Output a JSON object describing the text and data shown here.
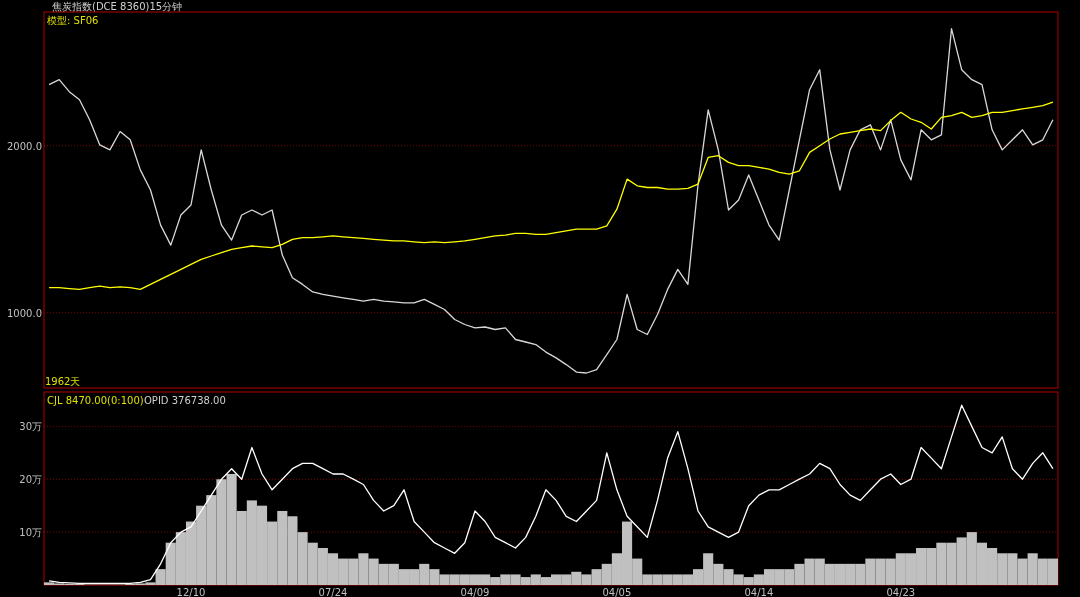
{
  "chart_data": [
    {
      "type": "line",
      "title": "焦炭指数(DCE 8360)15分钟",
      "annotations": [
        "模型: SF06",
        "1962天"
      ],
      "series": [
        {
          "color": "#d8d8d8",
          "values": [
            2365,
            2395,
            2323,
            2275,
            2155,
            2005,
            1975,
            2085,
            2035,
            1855,
            1735,
            1525,
            1405,
            1585,
            1645,
            1975,
            1735,
            1525,
            1435,
            1585,
            1615,
            1585,
            1615,
            1345,
            1210,
            1170,
            1125,
            1110,
            1100,
            1090,
            1080,
            1070,
            1080,
            1070,
            1065,
            1060,
            1060,
            1080,
            1050,
            1020,
            960,
            930,
            910,
            915,
            900,
            910,
            840,
            825,
            810,
            765,
            730,
            690,
            645,
            640,
            660,
            750,
            840,
            1110,
            900,
            870,
            990,
            1140,
            1260,
            1170,
            1765,
            2215,
            1975,
            1615,
            1675,
            1825,
            1675,
            1525,
            1435,
            1735,
            2035,
            2335,
            2455,
            1975,
            1735,
            1975,
            2095,
            2125,
            1975,
            2155,
            1915,
            1795,
            2095,
            2035,
            2065,
            2700,
            2455,
            2395,
            2365,
            2095,
            1975,
            2035,
            2095,
            2005,
            2035,
            2155
          ]
        },
        {
          "color": "#ffff00",
          "values": [
            1150,
            1150,
            1145,
            1140,
            1150,
            1160,
            1150,
            1155,
            1150,
            1140,
            1170,
            1200,
            1230,
            1260,
            1290,
            1320,
            1340,
            1360,
            1380,
            1390,
            1400,
            1395,
            1390,
            1410,
            1440,
            1450,
            1450,
            1455,
            1460,
            1455,
            1450,
            1445,
            1440,
            1435,
            1430,
            1430,
            1425,
            1420,
            1425,
            1420,
            1425,
            1430,
            1440,
            1450,
            1460,
            1465,
            1475,
            1475,
            1470,
            1470,
            1480,
            1490,
            1500,
            1500,
            1500,
            1520,
            1620,
            1800,
            1760,
            1750,
            1750,
            1740,
            1740,
            1745,
            1770,
            1930,
            1940,
            1900,
            1880,
            1880,
            1870,
            1860,
            1840,
            1830,
            1850,
            1960,
            2000,
            2040,
            2070,
            2080,
            2090,
            2100,
            2090,
            2150,
            2200,
            2160,
            2140,
            2100,
            2170,
            2180,
            2200,
            2170,
            2180,
            2200,
            2200,
            2210,
            2220,
            2230,
            2240,
            2260
          ]
        }
      ],
      "ylim": [
        550,
        2800
      ],
      "yticks": [
        {
          "value": 1000,
          "label": "1000.0"
        },
        {
          "value": 2000,
          "label": "2000.0"
        }
      ],
      "grid": "y",
      "tick_labels": "y"
    },
    {
      "type": "bar",
      "annotations": [
        "CJL 8470.00(0:100)",
        "OPID 376738.00"
      ],
      "categories": [
        null,
        null,
        null,
        null,
        null,
        null,
        null,
        null,
        null,
        null,
        null,
        null,
        null,
        null,
        "12/10",
        null,
        null,
        null,
        null,
        null,
        null,
        null,
        null,
        null,
        null,
        null,
        null,
        null,
        "07/24",
        null,
        null,
        null,
        null,
        null,
        null,
        null,
        null,
        null,
        null,
        null,
        null,
        null,
        "04/09",
        null,
        null,
        null,
        null,
        null,
        null,
        null,
        null,
        null,
        null,
        null,
        null,
        null,
        "04/05",
        null,
        null,
        null,
        null,
        null,
        null,
        null,
        null,
        null,
        null,
        null,
        null,
        null,
        "04/14",
        null,
        null,
        null,
        null,
        null,
        null,
        null,
        null,
        null,
        null,
        null,
        null,
        null,
        "04/23",
        null,
        null,
        null,
        null,
        null,
        null,
        null,
        null,
        null,
        null,
        null,
        null,
        null,
        null,
        null
      ],
      "series": [
        {
          "type": "bar",
          "color": "#c0c0c0",
          "values": [
            0.5,
            0.3,
            0.2,
            0.2,
            0.1,
            0.1,
            0.1,
            0.1,
            0.2,
            0.3,
            0.5,
            3,
            8,
            10,
            12,
            15,
            17,
            20,
            21,
            14,
            16,
            15,
            12,
            14,
            13,
            10,
            8,
            7,
            6,
            5,
            5,
            6,
            5,
            4,
            4,
            3,
            3,
            4,
            3,
            2,
            2,
            2,
            2,
            2,
            1.5,
            2,
            2,
            1.5,
            2,
            1.5,
            2,
            2,
            2.5,
            2,
            3,
            4,
            6,
            12,
            5,
            2,
            2,
            2,
            2,
            2,
            3,
            6,
            4,
            3,
            2,
            1.5,
            2,
            3,
            3,
            3,
            4,
            5,
            5,
            4,
            4,
            4,
            4,
            5,
            5,
            5,
            6,
            6,
            7,
            7,
            8,
            8,
            9,
            10,
            8,
            7,
            6,
            6,
            5,
            6,
            5,
            5
          ]
        },
        {
          "type": "line",
          "color": "#ffffff",
          "values": [
            0.8,
            0.5,
            0.4,
            0.3,
            0.3,
            0.3,
            0.3,
            0.3,
            0.3,
            0.5,
            1,
            4,
            8,
            10,
            11,
            14,
            17,
            20,
            22,
            20,
            26,
            21,
            18,
            20,
            22,
            23,
            23,
            22,
            21,
            21,
            20,
            19,
            16,
            14,
            15,
            18,
            12,
            10,
            8,
            7,
            6,
            8,
            14,
            12,
            9,
            8,
            7,
            9,
            13,
            18,
            16,
            13,
            12,
            14,
            16,
            25,
            18,
            13,
            11,
            9,
            16,
            24,
            29,
            22,
            14,
            11,
            10,
            9,
            10,
            15,
            17,
            18,
            18,
            19,
            20,
            21,
            23,
            22,
            19,
            17,
            16,
            18,
            20,
            21,
            19,
            20,
            26,
            24,
            22,
            28,
            34,
            30,
            26,
            25,
            28,
            22,
            20,
            23,
            25,
            22
          ]
        }
      ],
      "ylim": [
        0,
        36.5
      ],
      "yticks": [
        {
          "value": 10,
          "label": "10万"
        },
        {
          "value": 20,
          "label": "20万"
        },
        {
          "value": 30,
          "label": "30万"
        }
      ],
      "grid": "y"
    }
  ]
}
